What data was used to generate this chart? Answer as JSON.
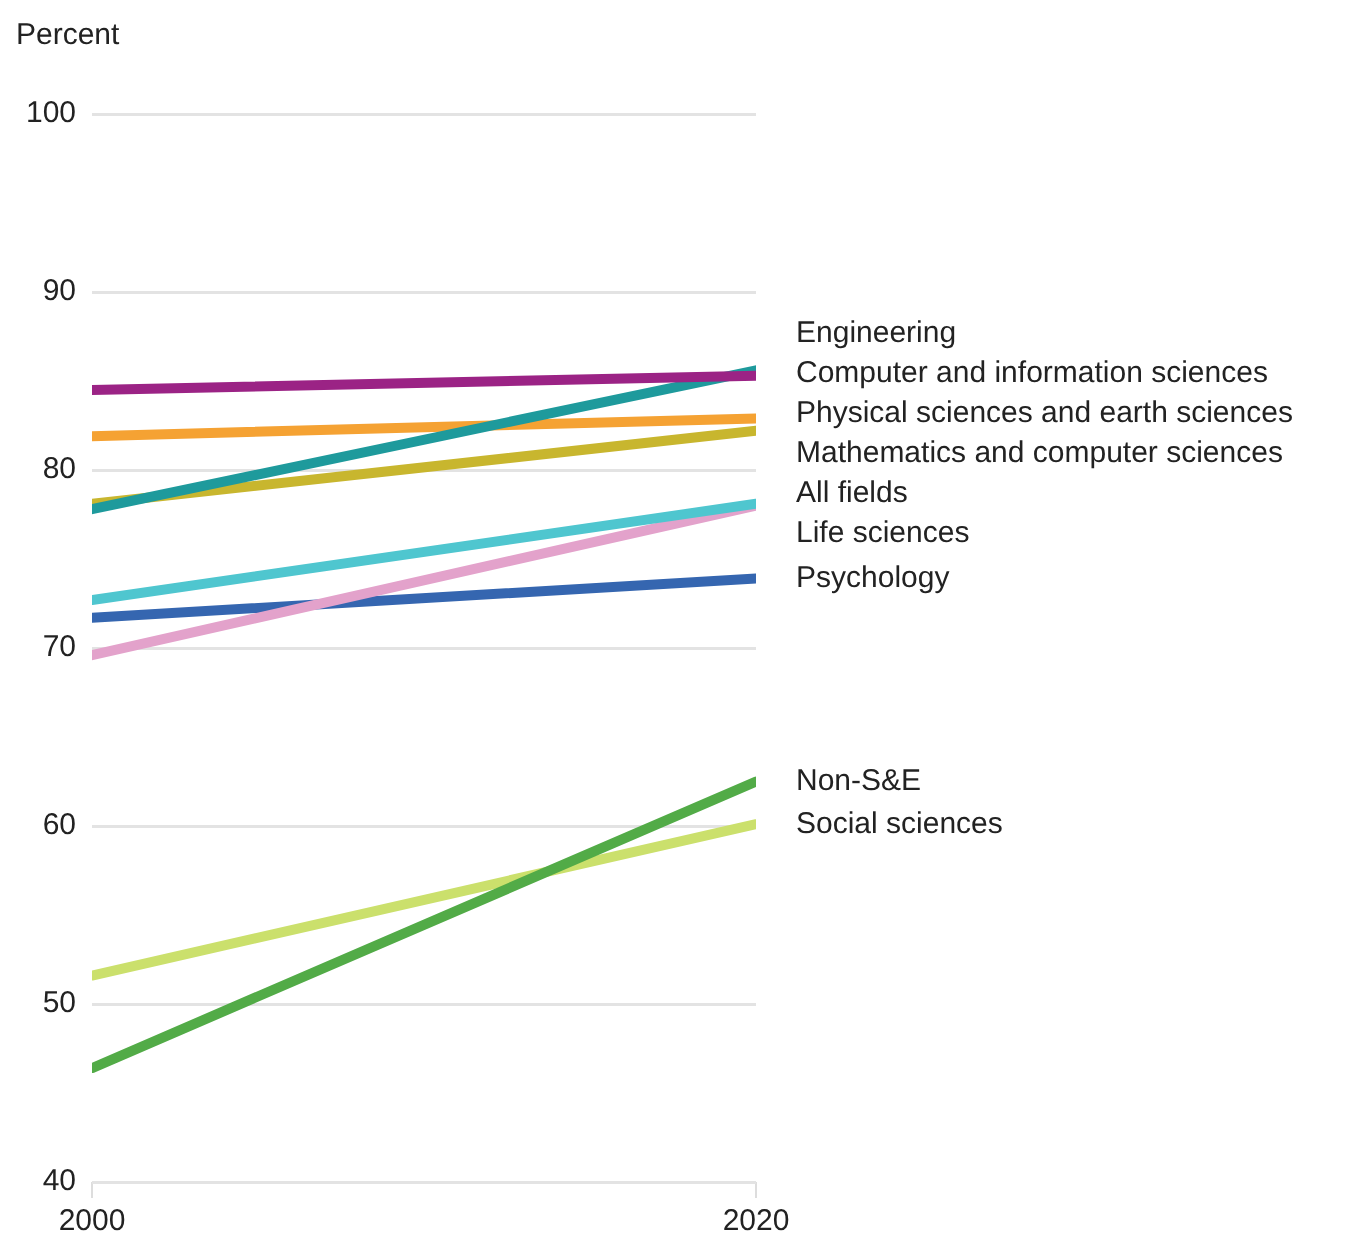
{
  "chart_data": {
    "type": "line",
    "ylabel": "Percent",
    "x": [
      2000,
      2020
    ],
    "xlim": [
      2000,
      2020
    ],
    "xticks": [
      2000,
      2020
    ],
    "ylim": [
      40,
      100
    ],
    "yticks": [
      40,
      50,
      60,
      70,
      80,
      90,
      100
    ],
    "grid": "y",
    "marker": "none",
    "line_style": "solid",
    "series": [
      {
        "name": "Engineering",
        "color": "#9b2385",
        "values": [
          84.5,
          85.3
        ]
      },
      {
        "name": "Computer and information sciences",
        "color": "#1e9a9c",
        "values": [
          77.8,
          85.6
        ]
      },
      {
        "name": "Physical sciences and earth sciences",
        "color": "#f5a233",
        "values": [
          81.9,
          82.9
        ]
      },
      {
        "name": "Mathematics and computer sciences",
        "color": "#c8b62e",
        "values": [
          78.1,
          82.2
        ]
      },
      {
        "name": "All fields",
        "color": "#4fc6cf",
        "values": [
          72.7,
          78.1
        ]
      },
      {
        "name": "Life sciences",
        "color": "#e3a2cb",
        "values": [
          69.6,
          78.0
        ]
      },
      {
        "name": "Psychology",
        "color": "#3566b0",
        "values": [
          71.7,
          73.9
        ]
      },
      {
        "name": "Non-S&E",
        "color": "#52ab47",
        "values": [
          46.4,
          62.5
        ]
      },
      {
        "name": "Social sciences",
        "color": "#cbe06c",
        "values": [
          51.6,
          60.1
        ]
      }
    ]
  }
}
